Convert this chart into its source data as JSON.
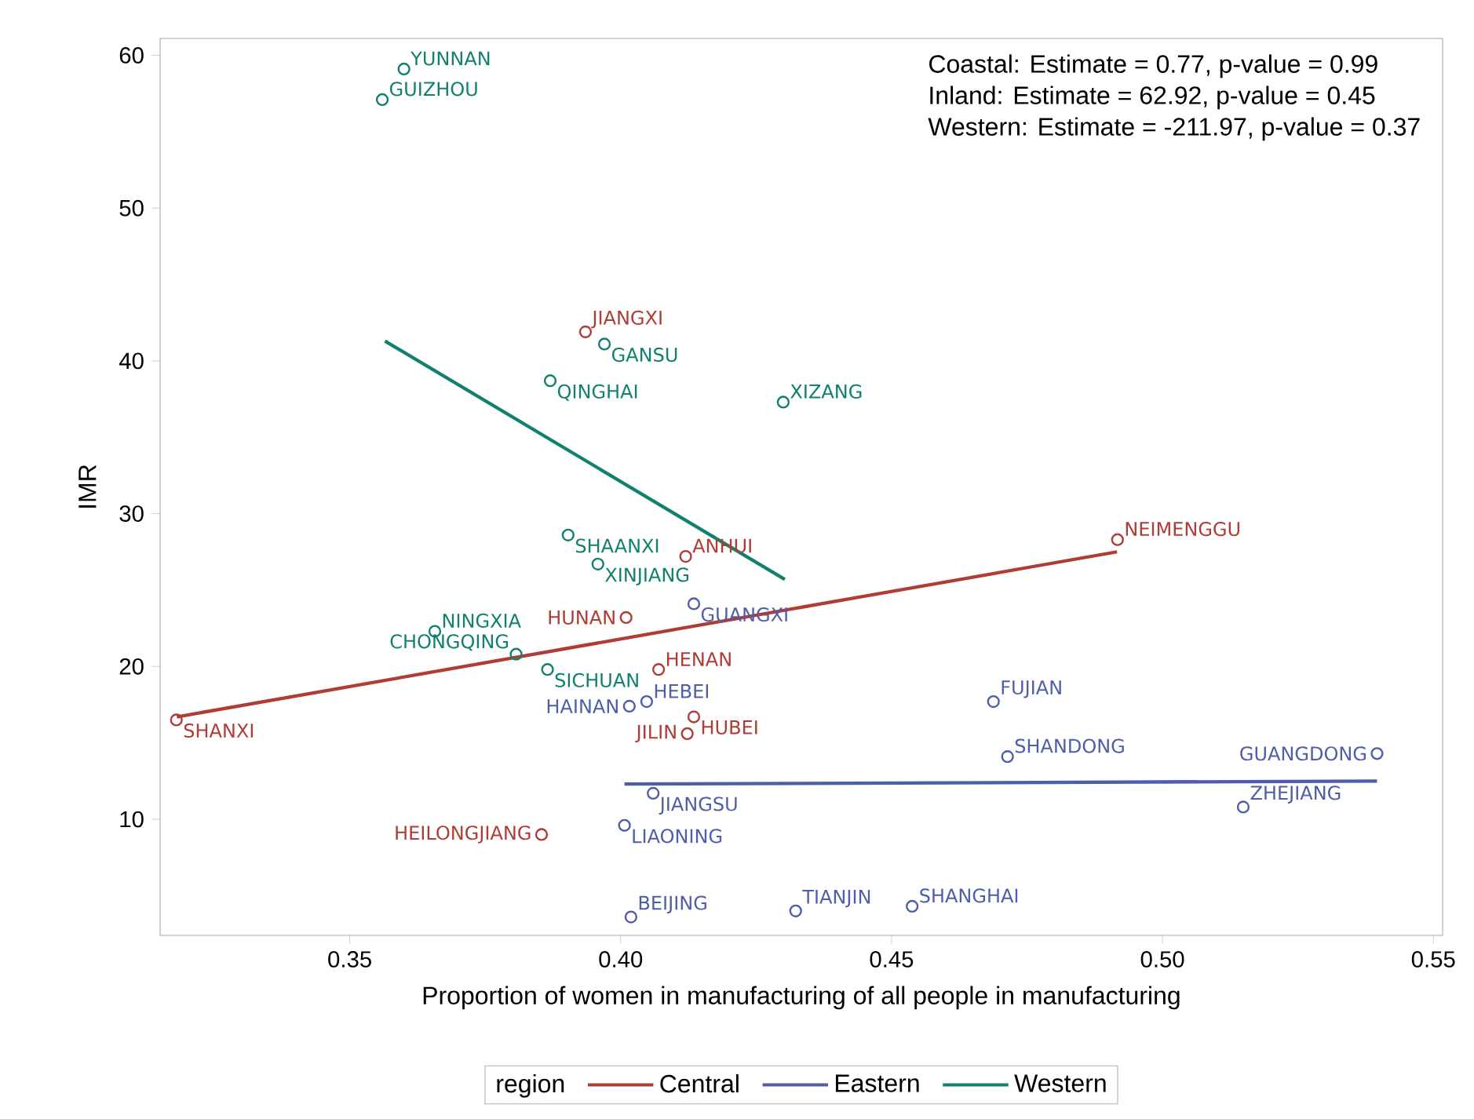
{
  "chart_data": {
    "type": "scatter",
    "xlabel": "Proportion of women in manufacturing of all people in manufacturing",
    "ylabel": "IMR",
    "legend_title": "region",
    "legend": "bottom",
    "grid": false,
    "xlim": [
      0.315,
      0.5517
    ],
    "ylim": [
      2.4,
      61.1
    ],
    "xticks": [
      0.35,
      {
        "value": 0.4,
        "label": "0.40"
      },
      0.45,
      {
        "value": 0.5,
        "label": "0.50"
      },
      0.55
    ],
    "yticks": [
      10,
      20,
      30,
      40,
      50,
      60
    ],
    "series": [
      {
        "marker": "circle",
        "color": "#b03c36",
        "x": [
          0.318,
          0.3935,
          0.412,
          0.401,
          0.407,
          0.4135,
          0.4123,
          0.3854,
          0.4917
        ],
        "values": [
          16.5,
          41.9,
          27.2,
          23.2,
          19.8,
          16.7,
          15.6,
          9.0,
          28.3
        ]
      },
      {
        "marker": "circle",
        "color": "#4e5ea8",
        "x": [
          0.4135,
          0.4048,
          0.4016,
          0.406,
          0.4007,
          0.4019,
          0.4323,
          0.4688,
          0.4714,
          0.5396,
          0.5149,
          0.4538
        ],
        "values": [
          24.1,
          17.7,
          17.4,
          11.7,
          9.6,
          3.6,
          4.0,
          17.7,
          14.1,
          14.3,
          10.8,
          4.3
        ]
      },
      {
        "marker": "circle",
        "color": "#12806e",
        "x": [
          0.36,
          0.356,
          0.397,
          0.387,
          0.43,
          0.3903,
          0.3958,
          0.3657,
          0.3807,
          0.3865
        ],
        "values": [
          59.1,
          57.1,
          41.1,
          38.7,
          37.3,
          28.6,
          26.7,
          22.3,
          20.8,
          19.8
        ]
      },
      {
        "type": "line",
        "name": "Central",
        "marker": "none",
        "color": "#b03c36",
        "x": [
          0.3181,
          0.4916
        ],
        "values": [
          16.7,
          27.5
        ]
      },
      {
        "type": "line",
        "name": "Eastern",
        "marker": "none",
        "color": "#4e5ea8",
        "x": [
          0.4007,
          0.5396
        ],
        "values": [
          12.3,
          12.5
        ]
      },
      {
        "type": "line",
        "name": "Western",
        "marker": "none",
        "color": "#12806e",
        "x": [
          0.3565,
          0.4303
        ],
        "values": [
          41.3,
          25.7
        ]
      }
    ],
    "annotations": [
      "Coastal: Estimate = 0.77, p-value = 0.99",
      "Inland: Estimate = 62.92, p-value = 0.45",
      "Western: Estimate = -211.97, p-value = 0.37",
      {
        "text": "YUNNAN",
        "x": 0.36,
        "y": 59.1
      },
      {
        "text": "GUIZHOU",
        "x": 0.356,
        "y": 57.1
      },
      {
        "text": "JIANGXI",
        "x": 0.3935,
        "y": 41.9
      },
      {
        "text": "GANSU",
        "x": 0.397,
        "y": 41.1
      },
      {
        "text": "QINGHAI",
        "x": 0.387,
        "y": 38.7
      },
      {
        "text": "XIZANG",
        "x": 0.43,
        "y": 37.3
      },
      {
        "text": "NEIMENGGU",
        "x": 0.4917,
        "y": 28.3
      },
      {
        "text": "SHAANXI",
        "x": 0.3903,
        "y": 28.6
      },
      {
        "text": "XINJIANG",
        "x": 0.3958,
        "y": 26.7
      },
      {
        "text": "ANHUI",
        "x": 0.412,
        "y": 27.2
      },
      {
        "text": "HUNAN",
        "x": 0.401,
        "y": 23.2
      },
      {
        "text": "GUANGXI",
        "x": 0.4135,
        "y": 24.1
      },
      {
        "text": "NINGXIA",
        "x": 0.3657,
        "y": 22.3
      },
      {
        "text": "CHONGQING",
        "x": 0.3807,
        "y": 20.8
      },
      {
        "text": "SICHUAN",
        "x": 0.3865,
        "y": 19.8
      },
      {
        "text": "HENAN",
        "x": 0.407,
        "y": 19.8
      },
      {
        "text": "SHANXI",
        "x": 0.318,
        "y": 16.5
      },
      {
        "text": "HEBEI",
        "x": 0.4048,
        "y": 17.7
      },
      {
        "text": "HAINAN",
        "x": 0.4016,
        "y": 17.4
      },
      {
        "text": "HUBEI",
        "x": 0.4135,
        "y": 16.7
      },
      {
        "text": "JILIN",
        "x": 0.4123,
        "y": 15.6
      },
      {
        "text": "FUJIAN",
        "x": 0.4688,
        "y": 17.7
      },
      {
        "text": "SHANDONG",
        "x": 0.4714,
        "y": 14.1
      },
      {
        "text": "GUANGDONG",
        "x": 0.5396,
        "y": 14.3
      },
      {
        "text": "JIANGSU",
        "x": 0.406,
        "y": 11.7
      },
      {
        "text": "ZHEJIANG",
        "x": 0.5149,
        "y": 10.8
      },
      {
        "text": "LIAONING",
        "x": 0.4007,
        "y": 9.6
      },
      {
        "text": "HEILONGJIANG",
        "x": 0.3854,
        "y": 9.0
      },
      {
        "text": "BEIJING",
        "x": 0.4019,
        "y": 3.6
      },
      {
        "text": "TIANJIN",
        "x": 0.4323,
        "y": 4.0
      },
      {
        "text": "SHANGHAI",
        "x": 0.4538,
        "y": 4.3
      }
    ]
  }
}
